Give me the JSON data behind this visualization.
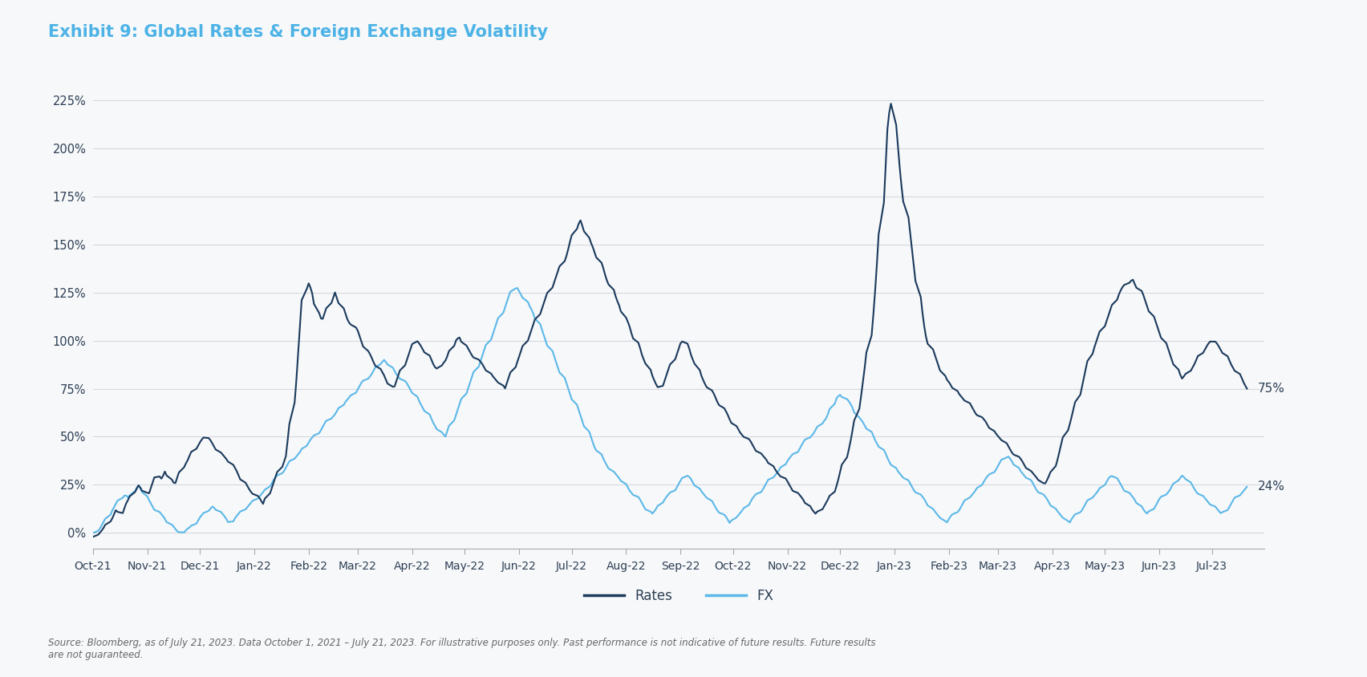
{
  "title": "Exhibit 9: Global Rates & Foreign Exchange Volatility",
  "title_color": "#4db3e6",
  "title_fontsize": 15,
  "tick_color": "#2d3f54",
  "rates_color": "#1b3a5c",
  "fx_color": "#5bb8e8",
  "rates_label": "Rates",
  "fx_label": "FX",
  "rates_end_label": "75%",
  "fx_end_label": "24%",
  "source_text": "Source: Bloomberg, as of July 21, 2023. Data October 1, 2021 – July 21, 2023. For illustrative purposes only. Past performance is not indicative of future results. Future results\nare not guaranteed.",
  "ylim": [
    -8,
    240
  ],
  "yticks": [
    0,
    25,
    50,
    75,
    100,
    125,
    150,
    175,
    200,
    225
  ],
  "ytick_labels": [
    "0%",
    "25%",
    "50%",
    "75%",
    "100%",
    "125%",
    "150%",
    "175%",
    "200%",
    "225%"
  ],
  "background_color": "#f7f8fa",
  "plot_bg_color": "#f7f8fa",
  "grid_color": "#d5d8de",
  "xticklabels": [
    "Oct-21",
    "Nov-21",
    "Dec-21",
    "Jan-22",
    "Feb-22",
    "Mar-22",
    "Apr-22",
    "May-22",
    "Jun-22",
    "Jul-22",
    "Aug-22",
    "Sep-22",
    "Oct-22",
    "Nov-22",
    "Dec-22",
    "Jan-23",
    "Feb-23",
    "Mar-23",
    "Apr-23",
    "May-23",
    "Jun-23",
    "Jul-23"
  ],
  "rates_data": [
    -2,
    0,
    2,
    5,
    8,
    12,
    10,
    15,
    18,
    22,
    25,
    22,
    20,
    25,
    30,
    28,
    32,
    28,
    25,
    30,
    35,
    38,
    42,
    45,
    48,
    50,
    48,
    45,
    42,
    40,
    38,
    35,
    32,
    28,
    25,
    22,
    20,
    18,
    15,
    20,
    25,
    30,
    35,
    40,
    55,
    75,
    100,
    125,
    130,
    125,
    115,
    110,
    115,
    120,
    125,
    120,
    115,
    110,
    108,
    105,
    100,
    95,
    92,
    88,
    85,
    82,
    78,
    75,
    80,
    85,
    90,
    95,
    100,
    98,
    95,
    92,
    88,
    85,
    88,
    90,
    95,
    100,
    102,
    98,
    95,
    92,
    90,
    88,
    85,
    82,
    80,
    78,
    75,
    80,
    85,
    90,
    95,
    100,
    105,
    110,
    115,
    120,
    125,
    130,
    135,
    140,
    145,
    152,
    158,
    163,
    158,
    152,
    148,
    143,
    138,
    132,
    128,
    122,
    118,
    112,
    108,
    102,
    98,
    92,
    88,
    82,
    78,
    75,
    80,
    85,
    90,
    95,
    100,
    98,
    92,
    88,
    82,
    78,
    75,
    72,
    68,
    65,
    62,
    58,
    55,
    52,
    50,
    48,
    45,
    42,
    40,
    38,
    35,
    32,
    30,
    28,
    25,
    22,
    20,
    18,
    15,
    12,
    10,
    12,
    15,
    18,
    22,
    28,
    35,
    42,
    50,
    60,
    72,
    85,
    100,
    120,
    145,
    175,
    210,
    225,
    205,
    185,
    170,
    155,
    140,
    125,
    110,
    100,
    95,
    90,
    85,
    80,
    78,
    75,
    72,
    70,
    68,
    65,
    62,
    60,
    58,
    55,
    52,
    50,
    48,
    45,
    42,
    40,
    38,
    35,
    32,
    30,
    28,
    25,
    28,
    32,
    38,
    45,
    52,
    58,
    65,
    72,
    80,
    88,
    95,
    100,
    105,
    110,
    115,
    120,
    125,
    128,
    130,
    132,
    128,
    125,
    120,
    115,
    110,
    105,
    100,
    95,
    90,
    85,
    80,
    82,
    85,
    88,
    92,
    95,
    98,
    100,
    98,
    95,
    92,
    88,
    85,
    82,
    78,
    75
  ],
  "fx_data": [
    0,
    2,
    5,
    8,
    12,
    15,
    18,
    20,
    18,
    22,
    25,
    22,
    18,
    15,
    12,
    10,
    8,
    5,
    3,
    1,
    0,
    2,
    3,
    5,
    8,
    10,
    12,
    14,
    12,
    10,
    8,
    5,
    8,
    10,
    12,
    14,
    16,
    18,
    20,
    22,
    25,
    28,
    30,
    32,
    35,
    38,
    40,
    42,
    45,
    48,
    50,
    52,
    55,
    58,
    60,
    62,
    65,
    68,
    70,
    72,
    75,
    78,
    80,
    82,
    85,
    88,
    90,
    88,
    85,
    82,
    80,
    78,
    75,
    72,
    68,
    65,
    62,
    58,
    55,
    52,
    50,
    55,
    60,
    65,
    70,
    75,
    80,
    85,
    90,
    95,
    100,
    105,
    110,
    115,
    120,
    125,
    128,
    125,
    122,
    118,
    115,
    110,
    105,
    100,
    95,
    90,
    85,
    80,
    75,
    70,
    65,
    60,
    55,
    50,
    45,
    42,
    38,
    35,
    32,
    30,
    28,
    25,
    22,
    20,
    18,
    15,
    12,
    10,
    12,
    15,
    18,
    20,
    22,
    25,
    28,
    30,
    28,
    25,
    22,
    20,
    18,
    15,
    12,
    10,
    8,
    5,
    8,
    10,
    12,
    15,
    18,
    20,
    22,
    25,
    28,
    30,
    32,
    35,
    38,
    40,
    42,
    45,
    48,
    50,
    52,
    55,
    58,
    60,
    65,
    70,
    72,
    70,
    68,
    65,
    60,
    58,
    55,
    52,
    48,
    45,
    42,
    38,
    35,
    32,
    30,
    28,
    25,
    22,
    20,
    18,
    15,
    12,
    10,
    8,
    5,
    8,
    10,
    12,
    15,
    18,
    20,
    22,
    25,
    28,
    30,
    32,
    35,
    38,
    40,
    38,
    35,
    32,
    30,
    28,
    25,
    22,
    20,
    18,
    15,
    12,
    10,
    8,
    5,
    8,
    10,
    12,
    15,
    18,
    20,
    22,
    25,
    28,
    30,
    28,
    25,
    22,
    20,
    18,
    15,
    12,
    10,
    12,
    15,
    18,
    20,
    22,
    25,
    28,
    30,
    28,
    25,
    22,
    20,
    18,
    16,
    14,
    12,
    10,
    12,
    15,
    18,
    20,
    22,
    24
  ]
}
